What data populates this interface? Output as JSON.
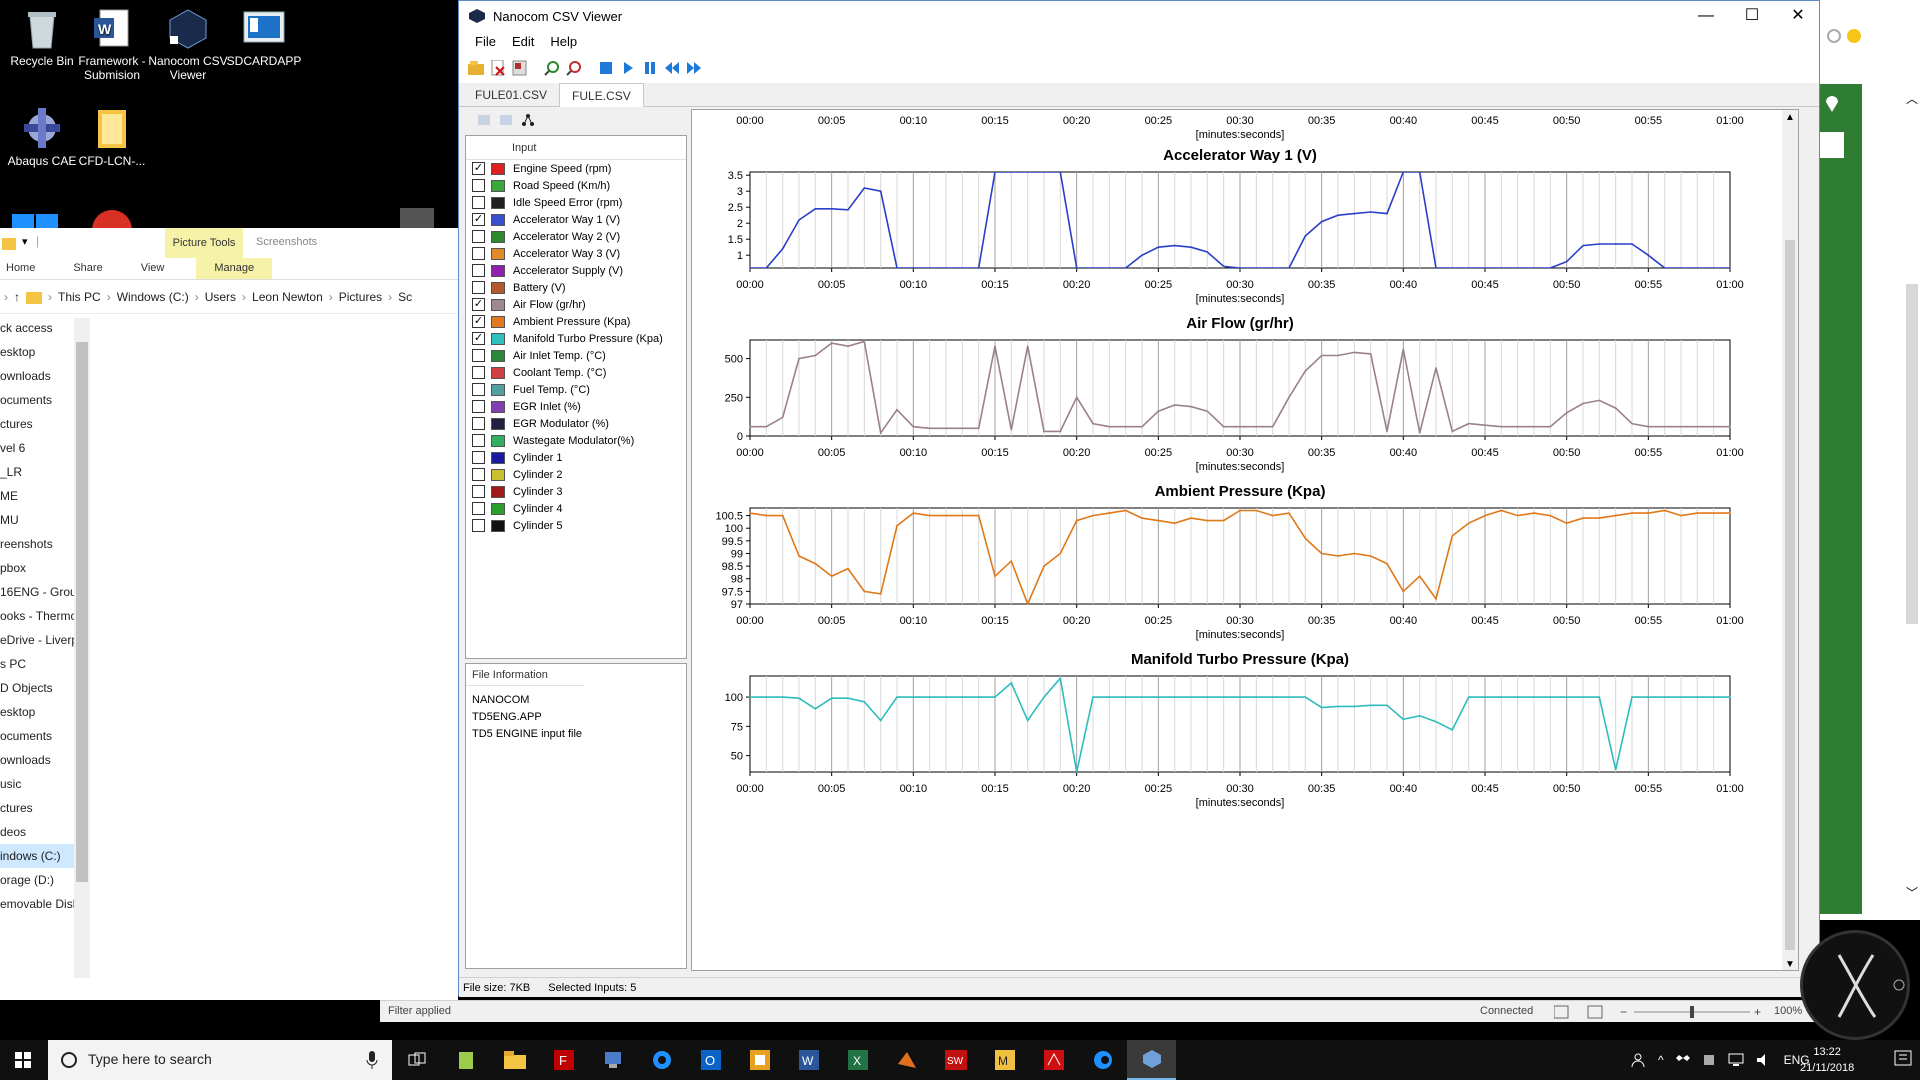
{
  "desktop": {
    "icons": [
      {
        "label": "Recycle Bin"
      },
      {
        "label": "Framework - Submision"
      },
      {
        "label": "Nanocom CSV Viewer"
      },
      {
        "label": "SDCARDAPP"
      },
      {
        "label": "Abaqus CAE"
      },
      {
        "label": "CFD-LCN-..."
      }
    ]
  },
  "explorer": {
    "picture_tools": "Picture Tools",
    "screenshots": "Screenshots",
    "ribbon": [
      "Home",
      "Share",
      "View"
    ],
    "manage": "Manage",
    "path": [
      "This PC",
      "Windows (C:)",
      "Users",
      "Leon Newton",
      "Pictures",
      "Sc"
    ],
    "nav": [
      "ck access",
      "esktop",
      "ownloads",
      "ocuments",
      "ctures",
      "vel 6",
      "_LR",
      "ME",
      "MU",
      "reenshots",
      "pbox",
      "16ENG - Grou",
      "ooks - Thermo",
      "eDrive - Liverp",
      "s PC",
      "D Objects",
      "esktop",
      "ocuments",
      "ownloads",
      "usic",
      "ctures",
      "deos",
      "indows (C:)",
      "orage (D:)",
      "emovable Disk"
    ],
    "nav_selected": 22
  },
  "window": {
    "title": "Nanocom CSV Viewer",
    "menu": [
      "File",
      "Edit",
      "Help"
    ],
    "tabs": [
      "FULE01.CSV",
      "FULE.CSV"
    ],
    "active_tab": 1
  },
  "inputs": {
    "header": "Input",
    "items": [
      {
        "label": "Engine Speed (rpm)",
        "checked": true,
        "color": "#e02020"
      },
      {
        "label": "Road Speed (Km/h)",
        "checked": false,
        "color": "#3aa83a"
      },
      {
        "label": "Idle Speed Error (rpm)",
        "checked": false,
        "color": "#202020"
      },
      {
        "label": "Accelerator Way 1 (V)",
        "checked": true,
        "color": "#3a4fd0"
      },
      {
        "label": "Accelerator Way 2 (V)",
        "checked": false,
        "color": "#2e8a2e"
      },
      {
        "label": "Accelerator Way 3 (V)",
        "checked": false,
        "color": "#e08a2a"
      },
      {
        "label": "Accelerator Supply (V)",
        "checked": false,
        "color": "#9020b0"
      },
      {
        "label": "Battery (V)",
        "checked": false,
        "color": "#b05a30"
      },
      {
        "label": "Air Flow (gr/hr)",
        "checked": true,
        "color": "#a08890"
      },
      {
        "label": "Ambient Pressure (Kpa)",
        "checked": true,
        "color": "#e07a20"
      },
      {
        "label": "Manifold Turbo Pressure (Kpa)",
        "checked": true,
        "color": "#30c0c0"
      },
      {
        "label": "Air Inlet Temp. (°C)",
        "checked": false,
        "color": "#2a8a3a"
      },
      {
        "label": "Coolant Temp. (°C)",
        "checked": false,
        "color": "#d04040"
      },
      {
        "label": "Fuel Temp. (°C)",
        "checked": false,
        "color": "#50a0a0"
      },
      {
        "label": "EGR Inlet (%)",
        "checked": false,
        "color": "#8040b0"
      },
      {
        "label": "EGR Modulator (%)",
        "checked": false,
        "color": "#202040"
      },
      {
        "label": "Wastegate Modulator(%)",
        "checked": false,
        "color": "#30b060"
      },
      {
        "label": "Cylinder 1",
        "checked": false,
        "color": "#1a1aa0"
      },
      {
        "label": "Cylinder 2",
        "checked": false,
        "color": "#c8c030"
      },
      {
        "label": "Cylinder 3",
        "checked": false,
        "color": "#a01a1a"
      },
      {
        "label": "Cylinder 4",
        "checked": false,
        "color": "#2aa02a"
      },
      {
        "label": "Cylinder 5",
        "checked": false,
        "color": "#101010"
      }
    ]
  },
  "file_info": {
    "header": "File Information",
    "lines": [
      "NANOCOM",
      "TD5ENG.APP",
      "TD5 ENGINE input file"
    ]
  },
  "status": {
    "file_size": "File size: 7KB",
    "selected": "Selected Inputs: 5",
    "filter": "Filter applied",
    "connected": "Connected",
    "zoom": "100%"
  },
  "taskbar": {
    "search_placeholder": "Type here to search",
    "lang": "ENG",
    "time": "13:22",
    "date": "21/11/2018"
  },
  "chart_data": [
    {
      "type": "line",
      "title": "",
      "xlabel": "[minutes:seconds]",
      "x_ticks": [
        "00:00",
        "00:05",
        "00:10",
        "00:15",
        "00:20",
        "00:25",
        "00:30",
        "00:35",
        "00:40",
        "00:45",
        "00:50",
        "00:55",
        "01:00"
      ],
      "partial": true
    },
    {
      "type": "line",
      "title": "Accelerator Way 1 (V)",
      "xlabel": "[minutes:seconds]",
      "x_ticks": [
        "00:00",
        "00:05",
        "00:10",
        "00:15",
        "00:20",
        "00:25",
        "00:30",
        "00:35",
        "00:40",
        "00:45",
        "00:50",
        "00:55",
        "01:00"
      ],
      "y_ticks": [
        1,
        1.5,
        2,
        2.5,
        3,
        3.5
      ],
      "ylim": [
        0.6,
        3.6
      ],
      "color": "#2a3fc8",
      "x": [
        0,
        1,
        2,
        3,
        4,
        5,
        6,
        7,
        8,
        9,
        10,
        11,
        12,
        13,
        14,
        15,
        16,
        17,
        18,
        19,
        20,
        21,
        22,
        23,
        24,
        25,
        26,
        27,
        28,
        29,
        30,
        31,
        32,
        33,
        34,
        35,
        36,
        37,
        38,
        39,
        40,
        41,
        42,
        43,
        44,
        45,
        46,
        47,
        48,
        49,
        50,
        51,
        52,
        53,
        54,
        55,
        56,
        57,
        58,
        59,
        60
      ],
      "y": [
        0.6,
        0.6,
        1.2,
        2.1,
        2.45,
        2.45,
        2.42,
        3.1,
        3.0,
        0.6,
        0.6,
        0.6,
        0.6,
        0.6,
        0.6,
        3.7,
        3.7,
        3.7,
        3.7,
        3.7,
        0.6,
        0.6,
        0.6,
        0.6,
        1.0,
        1.25,
        1.3,
        1.25,
        1.1,
        0.65,
        0.6,
        0.6,
        0.6,
        0.6,
        1.6,
        2.05,
        2.25,
        2.3,
        2.35,
        2.3,
        3.7,
        3.7,
        0.6,
        0.6,
        0.6,
        0.6,
        0.6,
        0.6,
        0.6,
        0.6,
        0.8,
        1.3,
        1.35,
        1.35,
        1.35,
        1.0,
        0.6,
        0.6,
        0.6,
        0.6,
        0.6
      ]
    },
    {
      "type": "line",
      "title": "Air Flow (gr/hr)",
      "xlabel": "[minutes:seconds]",
      "x_ticks": [
        "00:00",
        "00:05",
        "00:10",
        "00:15",
        "00:20",
        "00:25",
        "00:30",
        "00:35",
        "00:40",
        "00:45",
        "00:50",
        "00:55",
        "01:00"
      ],
      "y_ticks": [
        0,
        250,
        500
      ],
      "ylim": [
        0,
        620
      ],
      "color": "#9c8088",
      "x": [
        0,
        1,
        2,
        3,
        4,
        5,
        6,
        7,
        8,
        9,
        10,
        11,
        12,
        13,
        14,
        15,
        16,
        17,
        18,
        19,
        20,
        21,
        22,
        23,
        24,
        25,
        26,
        27,
        28,
        29,
        30,
        31,
        32,
        33,
        34,
        35,
        36,
        37,
        38,
        39,
        40,
        41,
        42,
        43,
        44,
        45,
        46,
        47,
        48,
        49,
        50,
        51,
        52,
        53,
        54,
        55,
        56,
        57,
        58,
        59,
        60
      ],
      "y": [
        60,
        60,
        120,
        500,
        520,
        600,
        580,
        610,
        20,
        170,
        60,
        50,
        50,
        50,
        50,
        580,
        40,
        580,
        30,
        30,
        250,
        80,
        60,
        60,
        60,
        160,
        200,
        190,
        160,
        60,
        60,
        60,
        60,
        250,
        420,
        520,
        520,
        540,
        530,
        30,
        560,
        20,
        440,
        30,
        80,
        70,
        60,
        60,
        60,
        60,
        150,
        210,
        230,
        180,
        80,
        60,
        60,
        60,
        60,
        60,
        60
      ]
    },
    {
      "type": "line",
      "title": "Ambient Pressure (Kpa)",
      "xlabel": "[minutes:seconds]",
      "x_ticks": [
        "00:00",
        "00:05",
        "00:10",
        "00:15",
        "00:20",
        "00:25",
        "00:30",
        "00:35",
        "00:40",
        "00:45",
        "00:50",
        "00:55",
        "01:00"
      ],
      "y_ticks": [
        97,
        97.5,
        98,
        98.5,
        99,
        99.5,
        100,
        100.5
      ],
      "ylim": [
        97,
        100.8
      ],
      "color": "#e07818",
      "x": [
        0,
        1,
        2,
        3,
        4,
        5,
        6,
        7,
        8,
        9,
        10,
        11,
        12,
        13,
        14,
        15,
        16,
        17,
        18,
        19,
        20,
        21,
        22,
        23,
        24,
        25,
        26,
        27,
        28,
        29,
        30,
        31,
        32,
        33,
        34,
        35,
        36,
        37,
        38,
        39,
        40,
        41,
        42,
        43,
        44,
        45,
        46,
        47,
        48,
        49,
        50,
        51,
        52,
        53,
        54,
        55,
        56,
        57,
        58,
        59,
        60
      ],
      "y": [
        100.6,
        100.5,
        100.5,
        98.9,
        98.6,
        98.1,
        98.4,
        97.5,
        97.4,
        100.1,
        100.6,
        100.5,
        100.5,
        100.5,
        100.5,
        98.1,
        98.7,
        97.0,
        98.5,
        99.0,
        100.3,
        100.5,
        100.6,
        100.7,
        100.4,
        100.3,
        100.2,
        100.4,
        100.3,
        100.3,
        100.7,
        100.7,
        100.5,
        100.6,
        99.6,
        99.0,
        98.9,
        99.0,
        98.9,
        98.6,
        97.5,
        98.1,
        97.2,
        99.7,
        100.2,
        100.5,
        100.7,
        100.5,
        100.6,
        100.5,
        100.2,
        100.4,
        100.4,
        100.5,
        100.6,
        100.6,
        100.7,
        100.5,
        100.6,
        100.6,
        100.6
      ]
    },
    {
      "type": "line",
      "title": "Manifold Turbo Pressure (Kpa)",
      "xlabel": "[minutes:seconds]",
      "x_ticks": [
        "00:00",
        "00:05",
        "00:10",
        "00:15",
        "00:20",
        "00:25",
        "00:30",
        "00:35",
        "00:40",
        "00:45",
        "00:50",
        "00:55",
        "01:00"
      ],
      "y_ticks": [
        50,
        75,
        100
      ],
      "ylim": [
        36,
        118
      ],
      "color": "#2ebcbc",
      "x": [
        0,
        1,
        2,
        3,
        4,
        5,
        6,
        7,
        8,
        9,
        10,
        11,
        12,
        13,
        14,
        15,
        16,
        17,
        18,
        19,
        20,
        21,
        22,
        23,
        24,
        25,
        26,
        27,
        28,
        29,
        30,
        31,
        32,
        33,
        34,
        35,
        36,
        37,
        38,
        39,
        40,
        41,
        42,
        43,
        44,
        45,
        46,
        47,
        48,
        49,
        50,
        51,
        52,
        53,
        54,
        55,
        56,
        57,
        58,
        59,
        60
      ],
      "y": [
        100,
        100,
        100,
        99,
        90,
        99,
        99,
        96,
        80,
        100,
        100,
        100,
        100,
        100,
        100,
        100,
        112,
        80,
        100,
        116,
        36,
        100,
        100,
        100,
        100,
        100,
        100,
        100,
        100,
        100,
        100,
        100,
        100,
        100,
        100,
        91,
        92,
        92,
        93,
        93,
        81,
        84,
        79,
        72,
        100,
        100,
        100,
        100,
        100,
        100,
        100,
        100,
        100,
        38,
        100,
        100,
        100,
        100,
        100,
        100,
        100
      ]
    }
  ]
}
